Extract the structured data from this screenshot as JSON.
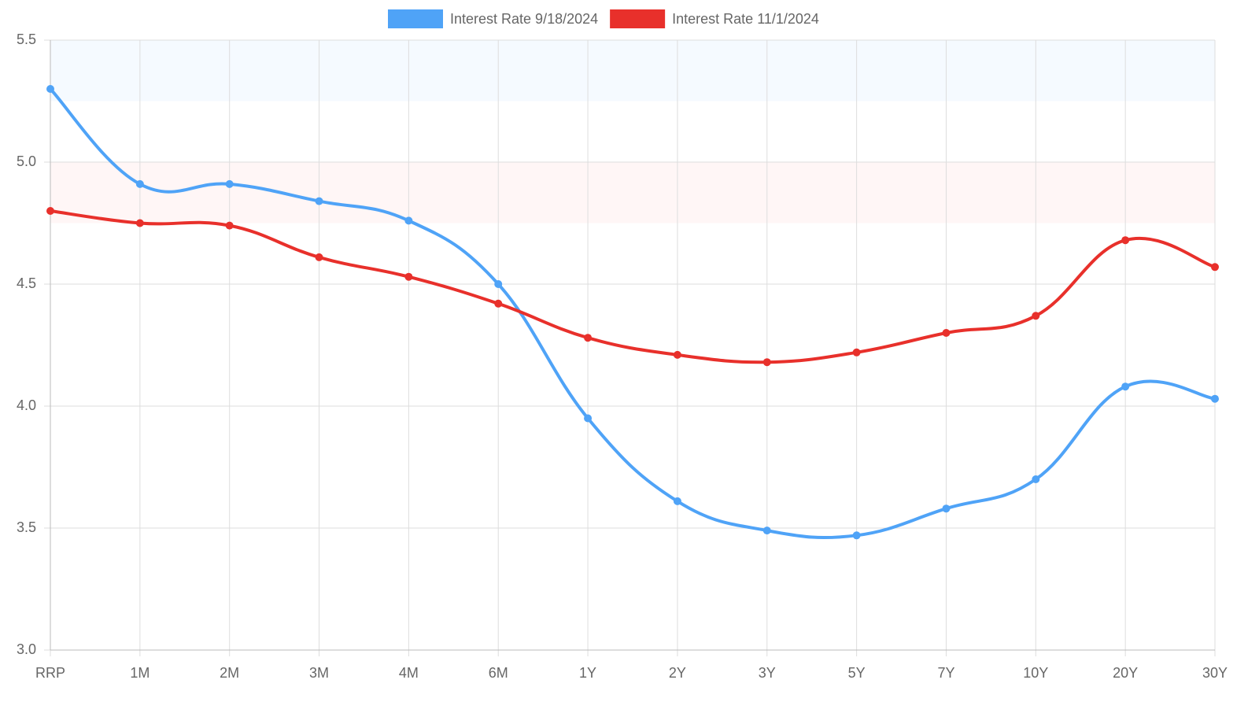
{
  "chart_data": {
    "type": "line",
    "categories": [
      "RRP",
      "1M",
      "2M",
      "3M",
      "4M",
      "6M",
      "1Y",
      "2Y",
      "3Y",
      "5Y",
      "7Y",
      "10Y",
      "20Y",
      "30Y"
    ],
    "series": [
      {
        "name": "Interest Rate 9/18/2024",
        "color": "#4fa3f7",
        "values": [
          5.3,
          4.91,
          4.91,
          4.84,
          4.76,
          4.5,
          3.95,
          3.61,
          3.49,
          3.47,
          3.58,
          3.7,
          4.08,
          4.03
        ]
      },
      {
        "name": "Interest Rate 11/1/2024",
        "color": "#e8302b",
        "values": [
          4.8,
          4.75,
          4.74,
          4.61,
          4.53,
          4.42,
          4.28,
          4.21,
          4.18,
          4.22,
          4.3,
          4.37,
          4.68,
          4.57
        ]
      }
    ],
    "bands": [
      {
        "from": 5.25,
        "to": 5.5,
        "color": "#4fa3f7"
      },
      {
        "from": 4.75,
        "to": 5.0,
        "color": "#f76a6a"
      }
    ],
    "ylim": [
      3,
      5.5
    ],
    "yticks": [
      {
        "value": 3,
        "label": "3.0"
      },
      3.5,
      {
        "value": 4,
        "label": "4.0"
      },
      4.5,
      {
        "value": 5,
        "label": "5.0"
      },
      5.5
    ],
    "grid": true,
    "legend": "top"
  }
}
